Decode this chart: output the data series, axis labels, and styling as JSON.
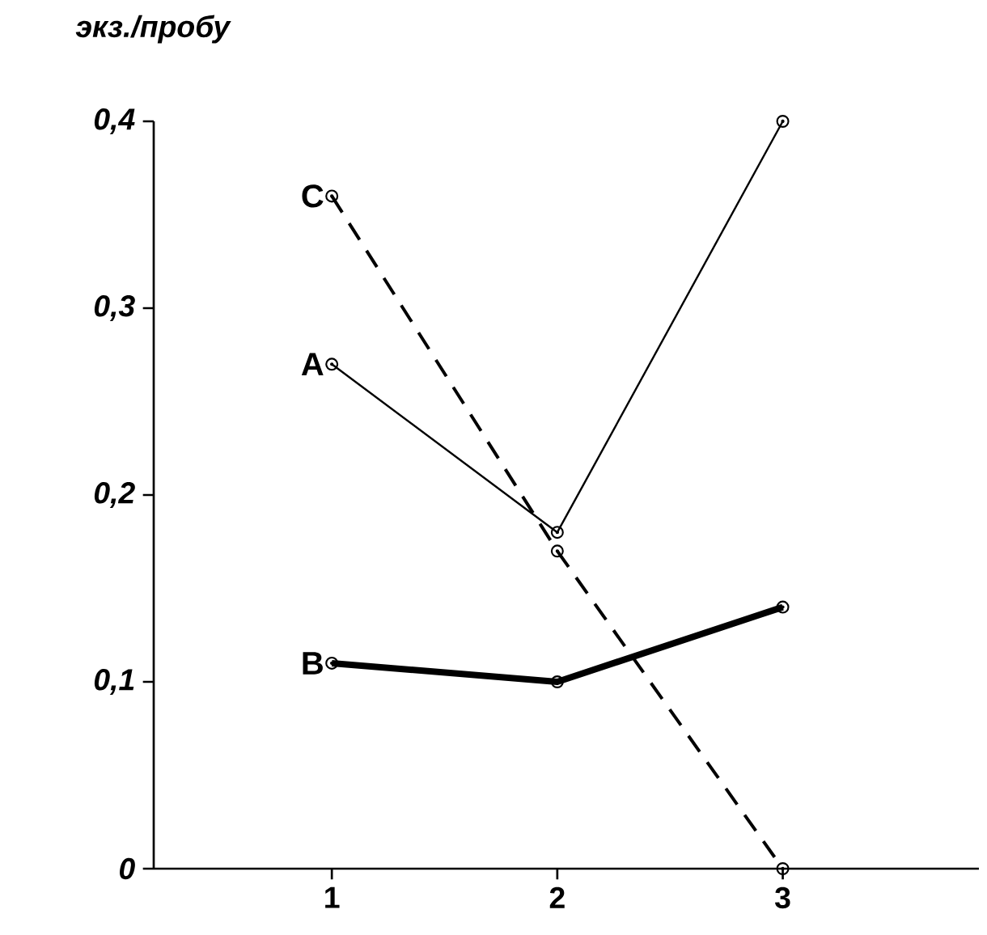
{
  "chart_data": {
    "type": "line",
    "ylabel": "экз./пробу",
    "x": [
      1,
      2,
      3
    ],
    "xlim": [
      0.21,
      3.87
    ],
    "xticks": [
      1,
      2,
      3
    ],
    "ylim": [
      0,
      0.4
    ],
    "yticks": [
      {
        "value": 0,
        "label": "0"
      },
      {
        "value": 0.1,
        "label": "0,1"
      },
      {
        "value": 0.2,
        "label": "0,2"
      },
      {
        "value": 0.3,
        "label": "0,3"
      },
      {
        "value": 0.4,
        "label": "0,4"
      }
    ],
    "marker": "circle",
    "grid": false,
    "series": [
      {
        "name": "A",
        "color": "#000000",
        "values": [
          0.27,
          0.18,
          0.4
        ],
        "line_style": "solid"
      },
      {
        "name": "B",
        "color": "#000000",
        "values": [
          0.11,
          0.1,
          0.14
        ],
        "line_style": "solid"
      },
      {
        "name": "C",
        "color": "#000000",
        "values": [
          0.36,
          0.17,
          0
        ],
        "line_style": "dashed"
      }
    ]
  }
}
